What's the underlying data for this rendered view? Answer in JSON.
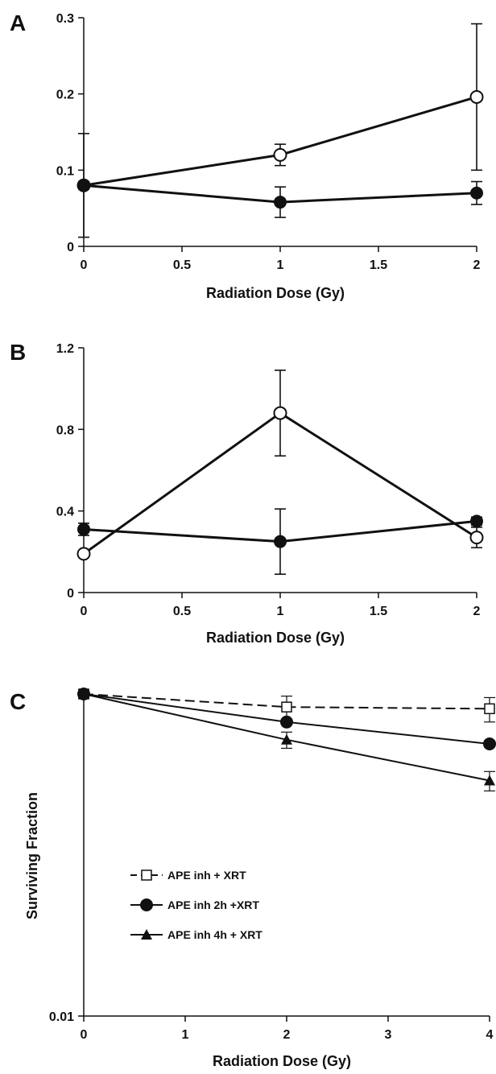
{
  "chart_data": [
    {
      "panel": "A",
      "type": "line",
      "xlabel": "Radiation Dose (Gy)",
      "ylabel": "",
      "xlim": [
        0,
        2
      ],
      "ylim": [
        0,
        0.3
      ],
      "xticks": [
        "0",
        "0.5",
        "1",
        "1.5",
        "2"
      ],
      "yticks": [
        "0",
        "0.1",
        "0.2",
        "0.3"
      ],
      "grid": false,
      "series": [
        {
          "marker": "open-circle",
          "x": [
            0,
            1,
            2
          ],
          "y": [
            0.08,
            0.12,
            0.196
          ],
          "err": [
            0.068,
            0.014,
            0.096
          ]
        },
        {
          "marker": "filled-circle",
          "x": [
            0,
            1,
            2
          ],
          "y": [
            0.08,
            0.058,
            0.07
          ],
          "err": [
            0.005,
            0.02,
            0.015
          ]
        }
      ]
    },
    {
      "panel": "B",
      "type": "line",
      "xlabel": "Radiation Dose (Gy)",
      "ylabel": "",
      "xlim": [
        0,
        2
      ],
      "ylim": [
        0,
        1.2
      ],
      "xticks": [
        "0",
        "0.5",
        "1",
        "1.5",
        "2"
      ],
      "yticks": [
        "0",
        "0.4",
        "0.8",
        "1.2"
      ],
      "grid": false,
      "series": [
        {
          "marker": "open-circle",
          "x": [
            0,
            1,
            2
          ],
          "y": [
            0.19,
            0.88,
            0.27
          ],
          "err": [
            0,
            0.21,
            0.05
          ]
        },
        {
          "marker": "filled-circle",
          "x": [
            0,
            1,
            2
          ],
          "y": [
            0.31,
            0.25,
            0.35
          ],
          "err": [
            0.03,
            0.16,
            0.02
          ]
        }
      ]
    },
    {
      "panel": "C",
      "type": "line",
      "xlabel": "Radiation Dose (Gy)",
      "ylabel": "Surviving Fraction",
      "xlim": [
        0,
        4
      ],
      "ylim": [
        0.01,
        1
      ],
      "yscale": "log",
      "xticks": [
        "0",
        "1",
        "2",
        "3",
        "4"
      ],
      "yticks": [
        "0.01"
      ],
      "grid": false,
      "legend_position": "lower-left",
      "series": [
        {
          "name": "APE inh + XRT",
          "marker": "open-square",
          "dashed": true,
          "x": [
            0,
            2,
            4
          ],
          "y": [
            1,
            0.83,
            0.81
          ],
          "err": [
            0.06,
            0.14,
            0.14
          ]
        },
        {
          "name": "APE inh 2h +XRT",
          "marker": "filled-circle",
          "dashed": false,
          "x": [
            0,
            2,
            4
          ],
          "y": [
            1,
            0.67,
            0.49
          ],
          "err": [
            0.02,
            0.02,
            0.02
          ]
        },
        {
          "name": "APE inh 4h + XRT",
          "marker": "filled-triangle",
          "dashed": false,
          "x": [
            0,
            2,
            4
          ],
          "y": [
            1,
            0.52,
            0.29
          ],
          "err": [
            0.02,
            0.06,
            0.04
          ]
        }
      ]
    }
  ]
}
